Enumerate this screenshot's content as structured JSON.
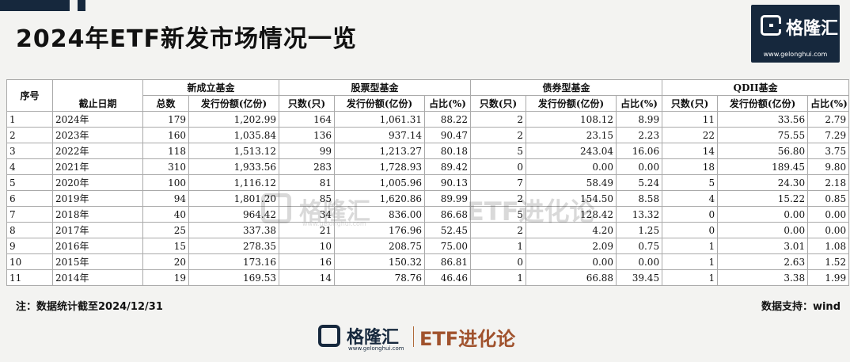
{
  "title": "2024年ETF新发市场情况一览",
  "brand": {
    "name": "格隆汇",
    "url": "www.gelonghui.com",
    "column": "ETF进化论"
  },
  "colors": {
    "header_navy": "#16283d",
    "accent_brown": "#a0522d"
  },
  "table": {
    "header_seq": "序号",
    "header_date": "截止日期",
    "groups": [
      "新成立基金",
      "股票型基金",
      "债券型基金",
      "QDII基金"
    ],
    "subheaders": [
      "总数",
      "发行份额(亿份)",
      "只数(只)",
      "发行份额(亿份)",
      "占比(%)",
      "只数(只)",
      "发行份额(亿份)",
      "占比(%)",
      "只数(只)",
      "发行份额(亿份)",
      "占比(%)"
    ],
    "rows": [
      [
        "1",
        "2024年",
        "179",
        "1,202.99",
        "164",
        "1,061.31",
        "88.22",
        "2",
        "108.12",
        "8.99",
        "11",
        "33.56",
        "2.79"
      ],
      [
        "2",
        "2023年",
        "160",
        "1,035.84",
        "136",
        "937.14",
        "90.47",
        "2",
        "23.15",
        "2.23",
        "22",
        "75.55",
        "7.29"
      ],
      [
        "3",
        "2022年",
        "118",
        "1,513.12",
        "99",
        "1,213.27",
        "80.18",
        "5",
        "243.04",
        "16.06",
        "14",
        "56.80",
        "3.75"
      ],
      [
        "4",
        "2021年",
        "310",
        "1,933.56",
        "283",
        "1,728.93",
        "89.42",
        "0",
        "0.00",
        "0.00",
        "18",
        "189.45",
        "9.80"
      ],
      [
        "5",
        "2020年",
        "100",
        "1,116.12",
        "81",
        "1,005.96",
        "90.13",
        "7",
        "58.49",
        "5.24",
        "5",
        "24.30",
        "2.18"
      ],
      [
        "6",
        "2019年",
        "94",
        "1,801.20",
        "85",
        "1,620.86",
        "89.99",
        "2",
        "154.50",
        "8.58",
        "4",
        "15.22",
        "0.85"
      ],
      [
        "7",
        "2018年",
        "40",
        "964.42",
        "34",
        "836.00",
        "86.68",
        "5",
        "128.42",
        "13.32",
        "0",
        "0.00",
        "0.00"
      ],
      [
        "8",
        "2017年",
        "25",
        "337.38",
        "21",
        "176.96",
        "52.45",
        "2",
        "4.20",
        "1.25",
        "0",
        "0.00",
        "0.00"
      ],
      [
        "9",
        "2016年",
        "15",
        "278.35",
        "10",
        "208.75",
        "75.00",
        "1",
        "2.09",
        "0.75",
        "1",
        "3.01",
        "1.08"
      ],
      [
        "10",
        "2015年",
        "20",
        "173.16",
        "16",
        "150.32",
        "86.81",
        "0",
        "0.00",
        "0.00",
        "1",
        "2.63",
        "1.52"
      ],
      [
        "11",
        "2014年",
        "19",
        "169.53",
        "14",
        "78.76",
        "46.46",
        "1",
        "66.88",
        "39.45",
        "1",
        "3.38",
        "1.99"
      ]
    ]
  },
  "note": "注：数据统计截至2024/12/31",
  "source": "数据支持：wind"
}
